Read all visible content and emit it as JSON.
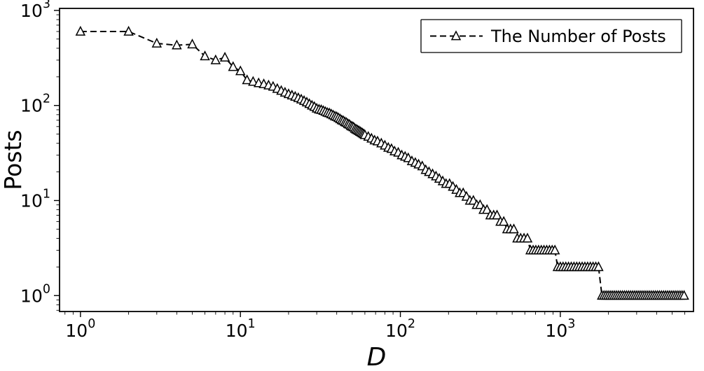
{
  "chart_data": {
    "type": "line",
    "title": "",
    "xlabel": "D",
    "ylabel": "Posts",
    "xscale": "log",
    "yscale": "log",
    "xlim": [
      0.74,
      6800
    ],
    "ylim": [
      0.68,
      1050
    ],
    "x_tick_exponents": [
      0,
      1,
      2,
      3
    ],
    "y_tick_exponents": [
      0,
      1,
      2,
      3
    ],
    "tick_label_base": "10",
    "legend": {
      "position": "upper right",
      "label": "The Number of Posts",
      "line_style": "dashed",
      "marker": "triangle-up-open",
      "color": "#000000"
    },
    "grid": false,
    "series_name": "The Number of Posts",
    "points": [
      [
        1,
        600
      ],
      [
        2,
        600
      ],
      [
        3,
        450
      ],
      [
        4,
        430
      ],
      [
        5,
        440
      ],
      [
        6,
        330
      ],
      [
        7,
        300
      ],
      [
        8,
        320
      ],
      [
        9,
        255
      ],
      [
        10,
        230
      ],
      [
        11,
        185
      ],
      [
        12,
        178
      ],
      [
        13,
        172
      ],
      [
        14,
        168
      ],
      [
        15,
        163
      ],
      [
        16,
        158
      ],
      [
        17,
        150
      ],
      [
        18,
        143
      ],
      [
        19,
        137
      ],
      [
        20,
        132
      ],
      [
        21,
        128
      ],
      [
        22,
        124
      ],
      [
        23,
        120
      ],
      [
        24,
        116
      ],
      [
        25,
        112
      ],
      [
        26,
        108
      ],
      [
        27,
        104
      ],
      [
        28,
        100
      ],
      [
        29,
        97
      ],
      [
        30,
        93
      ],
      [
        31,
        91
      ],
      [
        32,
        90
      ],
      [
        33,
        88
      ],
      [
        34,
        86
      ],
      [
        35,
        84
      ],
      [
        36,
        83
      ],
      [
        37,
        81
      ],
      [
        38,
        79
      ],
      [
        39,
        77
      ],
      [
        40,
        76
      ],
      [
        41,
        74
      ],
      [
        42,
        72
      ],
      [
        43,
        70
      ],
      [
        44,
        69
      ],
      [
        45,
        67
      ],
      [
        46,
        66
      ],
      [
        47,
        64
      ],
      [
        48,
        63
      ],
      [
        49,
        61
      ],
      [
        50,
        60
      ],
      [
        51,
        59
      ],
      [
        52,
        57
      ],
      [
        53,
        56
      ],
      [
        54,
        55
      ],
      [
        55,
        54
      ],
      [
        56,
        53
      ],
      [
        57,
        52
      ],
      [
        58,
        51
      ],
      [
        59,
        50
      ],
      [
        60,
        49
      ],
      [
        63,
        47
      ],
      [
        66,
        45
      ],
      [
        69,
        43
      ],
      [
        72,
        42
      ],
      [
        76,
        40
      ],
      [
        80,
        38
      ],
      [
        84,
        36
      ],
      [
        88,
        35
      ],
      [
        92,
        33
      ],
      [
        97,
        32
      ],
      [
        102,
        30
      ],
      [
        107,
        29
      ],
      [
        112,
        28
      ],
      [
        118,
        26
      ],
      [
        124,
        25
      ],
      [
        130,
        24
      ],
      [
        137,
        23
      ],
      [
        144,
        21
      ],
      [
        151,
        20
      ],
      [
        159,
        19
      ],
      [
        167,
        18
      ],
      [
        175,
        17
      ],
      [
        184,
        16
      ],
      [
        193,
        15
      ],
      [
        203,
        15
      ],
      [
        213,
        14
      ],
      [
        224,
        13
      ],
      [
        235,
        12
      ],
      [
        247,
        12
      ],
      [
        259,
        11
      ],
      [
        272,
        10
      ],
      [
        286,
        10
      ],
      [
        300,
        9
      ],
      [
        315,
        9
      ],
      [
        331,
        8
      ],
      [
        348,
        8
      ],
      [
        365,
        7
      ],
      [
        383,
        7
      ],
      [
        402,
        7
      ],
      [
        422,
        6
      ],
      [
        443,
        6
      ],
      [
        465,
        5
      ],
      [
        488,
        5
      ],
      [
        512,
        5
      ],
      [
        538,
        4
      ],
      [
        565,
        4
      ],
      [
        593,
        4
      ],
      [
        623,
        4
      ],
      [
        650,
        3
      ],
      [
        676,
        3
      ],
      [
        703,
        3
      ],
      [
        731,
        3
      ],
      [
        760,
        3
      ],
      [
        790,
        3
      ],
      [
        822,
        3
      ],
      [
        855,
        3
      ],
      [
        889,
        3
      ],
      [
        925,
        3
      ],
      [
        962,
        2
      ],
      [
        1000,
        2
      ],
      [
        1040,
        2
      ],
      [
        1082,
        2
      ],
      [
        1125,
        2
      ],
      [
        1170,
        2
      ],
      [
        1217,
        2
      ],
      [
        1266,
        2
      ],
      [
        1316,
        2
      ],
      [
        1369,
        2
      ],
      [
        1424,
        2
      ],
      [
        1481,
        2
      ],
      [
        1540,
        2
      ],
      [
        1602,
        2
      ],
      [
        1666,
        2
      ],
      [
        1733,
        2
      ],
      [
        1820,
        1
      ],
      [
        1875,
        1
      ],
      [
        1931,
        1
      ],
      [
        1989,
        1
      ],
      [
        2049,
        1
      ],
      [
        2110,
        1
      ],
      [
        2173,
        1
      ],
      [
        2238,
        1
      ],
      [
        2305,
        1
      ],
      [
        2374,
        1
      ],
      [
        2445,
        1
      ],
      [
        2518,
        1
      ],
      [
        2594,
        1
      ],
      [
        2672,
        1
      ],
      [
        2752,
        1
      ],
      [
        2835,
        1
      ],
      [
        2920,
        1
      ],
      [
        3008,
        1
      ],
      [
        3098,
        1
      ],
      [
        3191,
        1
      ],
      [
        3287,
        1
      ],
      [
        3386,
        1
      ],
      [
        3488,
        1
      ],
      [
        3593,
        1
      ],
      [
        3701,
        1
      ],
      [
        3812,
        1
      ],
      [
        3926,
        1
      ],
      [
        4044,
        1
      ],
      [
        4165,
        1
      ],
      [
        4290,
        1
      ],
      [
        4419,
        1
      ],
      [
        4552,
        1
      ],
      [
        4689,
        1
      ],
      [
        4830,
        1
      ],
      [
        4975,
        1
      ],
      [
        5124,
        1
      ],
      [
        5278,
        1
      ],
      [
        5436,
        1
      ],
      [
        5599,
        1
      ],
      [
        5767,
        1
      ],
      [
        5940,
        1
      ]
    ],
    "colors": {
      "line": "#000000",
      "marker_face": "#ffffff",
      "marker_edge": "#000000",
      "background": "#ffffff"
    }
  }
}
